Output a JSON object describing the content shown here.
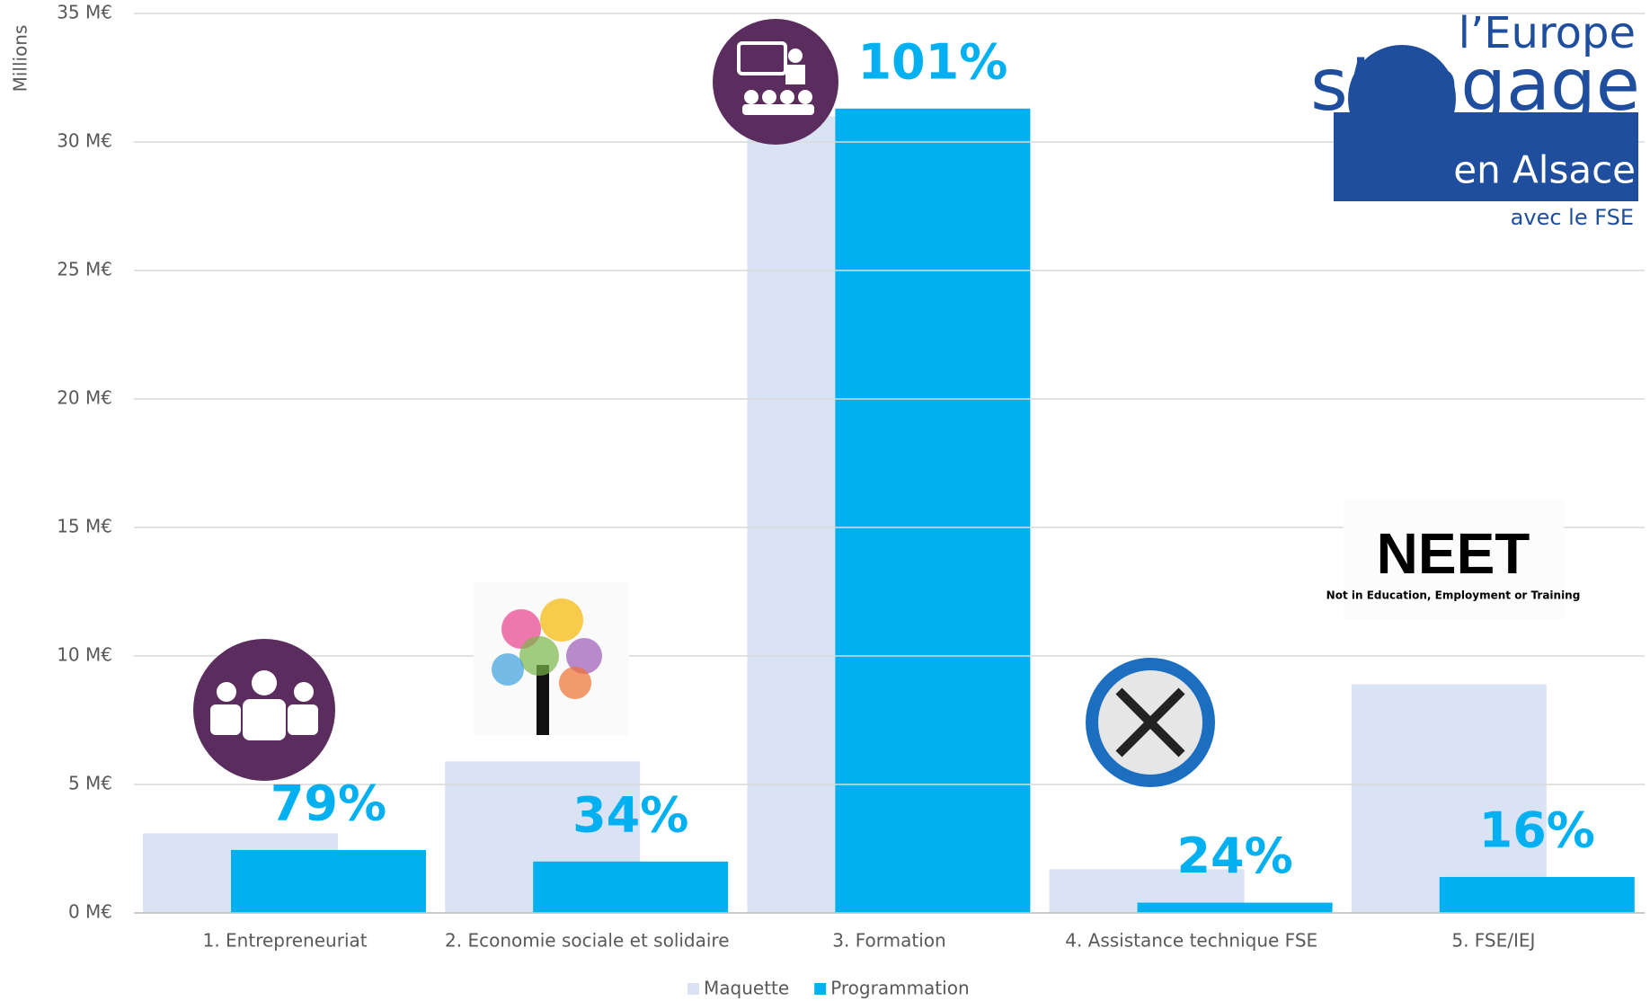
{
  "chart_data": {
    "type": "bar",
    "y_axis_label": "Millions",
    "categories": [
      "1. Entrepreneuriat",
      "2. Economie sociale et solidaire",
      "3. Formation",
      "4. Assistance technique FSE",
      "5. FSE/IEJ"
    ],
    "series": [
      {
        "name": "Maquette",
        "color": "#dae3f3",
        "values": [
          3.1,
          5.9,
          31.0,
          1.7,
          8.9
        ]
      },
      {
        "name": "Programmation",
        "color": "#00b0f0",
        "values": [
          2.45,
          2.0,
          31.3,
          0.4,
          1.4
        ]
      }
    ],
    "rate_labels": [
      "79%",
      "34%",
      "101%",
      "24%",
      "16%"
    ],
    "rate_color": "#00b0f0",
    "ylim": [
      0,
      35
    ],
    "yticks": [
      {
        "value": 0,
        "label": "0 M€"
      },
      {
        "value": 5,
        "label": "5 M€"
      },
      {
        "value": 10,
        "label": "10 M€"
      },
      {
        "value": 15,
        "label": "15 M€"
      },
      {
        "value": 20,
        "label": "20 M€"
      },
      {
        "value": 25,
        "label": "25 M€"
      },
      {
        "value": 30,
        "label": "30 M€"
      },
      {
        "value": 35,
        "label": "35 M€"
      }
    ],
    "grid": true,
    "legend": "bottom"
  },
  "logo": {
    "line1": "l’Europe",
    "line2": "s’engage",
    "line3": "en Alsace",
    "line4": "avec le FSE"
  },
  "neet": {
    "title": "NEET",
    "subtitle": "Not in Education, Employment or Training"
  }
}
